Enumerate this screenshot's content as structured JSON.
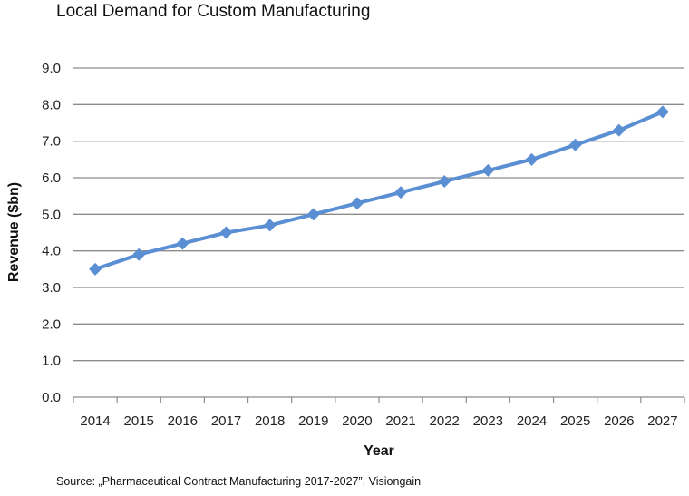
{
  "chart_data": {
    "type": "line",
    "title": "Local Demand for Custom Manufacturing",
    "xlabel": "Year",
    "ylabel": "Revenue ($bn)",
    "categories": [
      "2014",
      "2015",
      "2016",
      "2017",
      "2018",
      "2019",
      "2020",
      "2021",
      "2022",
      "2023",
      "2024",
      "2025",
      "2026",
      "2027"
    ],
    "series": [
      {
        "values": [
          3.5,
          3.9,
          4.2,
          4.5,
          4.7,
          5.0,
          5.3,
          5.6,
          5.9,
          6.2,
          6.5,
          6.9,
          7.3,
          7.8
        ]
      }
    ],
    "ylim": [
      0,
      9
    ],
    "yticks": [
      "0.0",
      "1.0",
      "2.0",
      "3.0",
      "4.0",
      "5.0",
      "6.0",
      "7.0",
      "8.0",
      "9.0"
    ],
    "grid": true,
    "line_color": "#5b8fd4",
    "grid_color": "#8c8c8c"
  },
  "source_note": "Source: „Pharmaceutical Contract Manufacturing 2017-2027”, Visiongain"
}
